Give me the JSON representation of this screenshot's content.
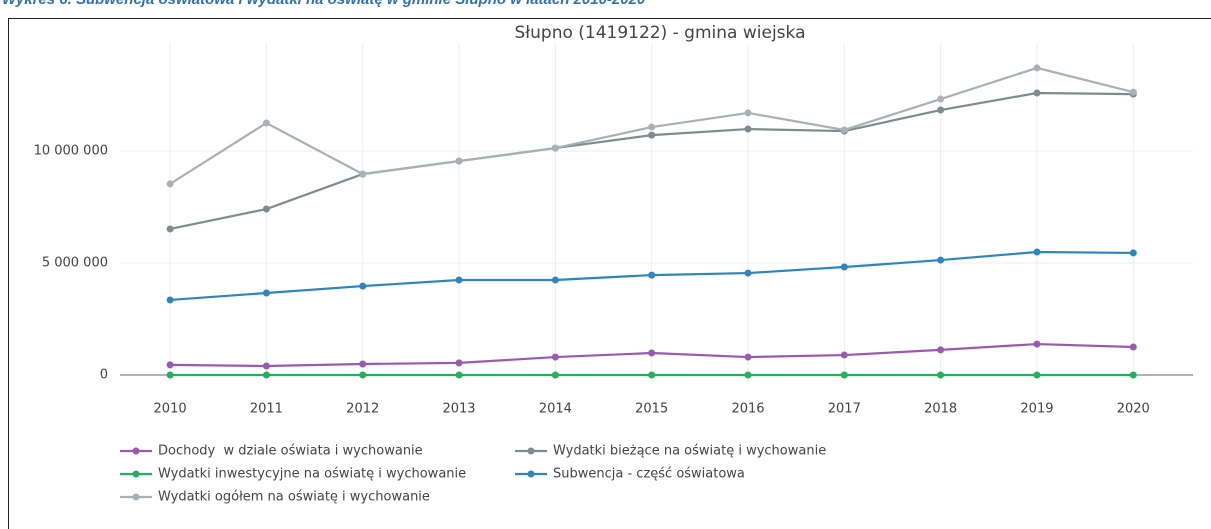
{
  "caption": "Wykres 6. Subwencja oświatowa i wydatki na oświatę w gminie Słupno w latach 2010-2020",
  "chart_data": {
    "type": "line",
    "title": "Słupno (1419122) - gmina wiejska",
    "x": [
      2010,
      2011,
      2012,
      2013,
      2014,
      2015,
      2016,
      2017,
      2018,
      2019,
      2020
    ],
    "xlim": [
      2009.48,
      2020.62
    ],
    "xticks": [
      2010,
      2011,
      2012,
      2013,
      2014,
      2015,
      2016,
      2017,
      2018,
      2019,
      2020
    ],
    "ylim": [
      -300000,
      14800000
    ],
    "yticks": [
      0,
      {
        "value": 5000000,
        "label": "5 000 000"
      },
      {
        "value": 10000000,
        "label": "10 000 000"
      }
    ],
    "grid": true,
    "series": [
      {
        "name": "Dochody  w dziale oświata i wychowanie",
        "color": "#9b59b6",
        "values": [
          450000,
          400000,
          490000,
          540000,
          800000,
          980000,
          800000,
          890000,
          1120000,
          1380000,
          1250000
        ]
      },
      {
        "name": "Wydatki bieżące na oświatę i wychowanie",
        "color": "#7f8c8d",
        "values": [
          6520000,
          7410000,
          8970000,
          9550000,
          10130000,
          10710000,
          10980000,
          10890000,
          11830000,
          12590000,
          12540000
        ]
      },
      {
        "name": "Wydatki inwestycyjne na oświatę i wychowanie",
        "color": "#27ae60",
        "values": [
          0,
          0,
          0,
          0,
          0,
          0,
          0,
          0,
          0,
          0,
          0
        ]
      },
      {
        "name": "Subwencja - część oświatowa",
        "color": "#2e86c1",
        "values": [
          3350000,
          3660000,
          3970000,
          4240000,
          4240000,
          4460000,
          4550000,
          4820000,
          5130000,
          5490000,
          5450000
        ]
      },
      {
        "name": "Wydatki ogółem na oświatę i wychowanie",
        "color": "#aab0b3",
        "values": [
          8530000,
          11250000,
          8970000,
          9550000,
          10130000,
          11070000,
          11700000,
          10940000,
          12320000,
          13710000,
          12630000
        ]
      }
    ]
  }
}
